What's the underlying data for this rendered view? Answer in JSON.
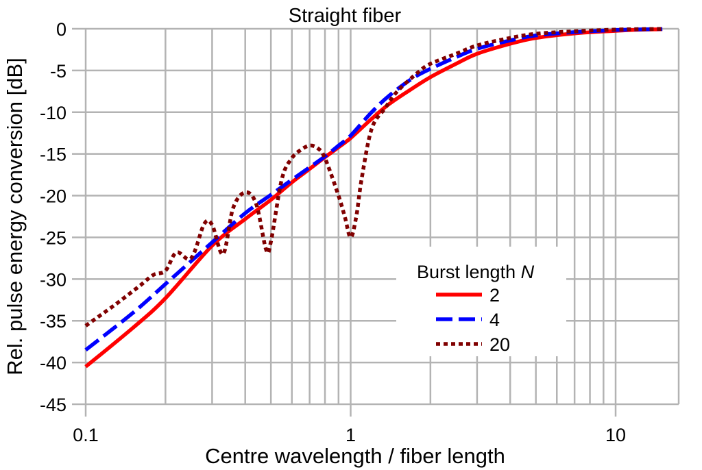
{
  "chart_data": {
    "type": "line",
    "title": "Straight fiber",
    "xlabel": "Centre wavelength / fiber length",
    "ylabel": "Rel. pulse energy conversion [dB]",
    "xscale": "log",
    "xlim": [
      0.1,
      15
    ],
    "ylim": [
      -45,
      0
    ],
    "grid": true,
    "xticks": [
      {
        "value": 0.1,
        "label": "0.1"
      },
      {
        "value": 1,
        "label": "1"
      },
      {
        "value": 10,
        "label": "10"
      }
    ],
    "yticks": [
      {
        "value": 0,
        "label": "0"
      },
      {
        "value": -5,
        "label": "-5"
      },
      {
        "value": -10,
        "label": "-10"
      },
      {
        "value": -15,
        "label": "-15"
      },
      {
        "value": -20,
        "label": "-20"
      },
      {
        "value": -25,
        "label": "-25"
      },
      {
        "value": -30,
        "label": "-30"
      },
      {
        "value": -35,
        "label": "-35"
      },
      {
        "value": -40,
        "label": "-40"
      },
      {
        "value": -45,
        "label": "-45"
      }
    ],
    "legend": {
      "title": "Burst length",
      "title_var": "N",
      "placement": "lower-right"
    },
    "series": [
      {
        "name": "2",
        "color": "#ff0000",
        "style": "solid",
        "x": [
          0.1,
          0.15,
          0.2,
          0.3,
          0.4,
          0.5,
          0.6,
          0.7,
          0.8,
          0.9,
          1.0,
          1.2,
          1.4,
          1.7,
          2.0,
          2.5,
          3.0,
          4.0,
          5.0,
          7.0,
          10.0,
          12.0,
          15.0
        ],
        "y": [
          -40.5,
          -35.9,
          -32.3,
          -26.0,
          -22.8,
          -20.5,
          -18.4,
          -16.8,
          -15.4,
          -14.2,
          -13.1,
          -10.8,
          -9.0,
          -7.2,
          -5.8,
          -4.2,
          -3.0,
          -1.8,
          -1.1,
          -0.55,
          -0.25,
          -0.12,
          -0.05
        ]
      },
      {
        "name": "4",
        "color": "#0000ff",
        "style": "dashed",
        "x": [
          0.1,
          0.15,
          0.2,
          0.3,
          0.4,
          0.5,
          0.6,
          0.7,
          0.8,
          0.9,
          1.0,
          1.2,
          1.4,
          1.7,
          2.0,
          2.5,
          3.0,
          4.0,
          5.0,
          7.0,
          10.0,
          12.0,
          15.0
        ],
        "y": [
          -38.5,
          -34.1,
          -30.6,
          -25.6,
          -22.1,
          -19.9,
          -18.1,
          -16.6,
          -15.3,
          -14.0,
          -12.8,
          -10.0,
          -8.0,
          -6.0,
          -4.8,
          -3.4,
          -2.4,
          -1.4,
          -0.8,
          -0.4,
          -0.15,
          -0.08,
          -0.03
        ]
      },
      {
        "name": "20",
        "color": "#800000",
        "style": "dotted",
        "x": [
          0.1,
          0.13,
          0.16,
          0.18,
          0.2,
          0.22,
          0.25,
          0.28,
          0.3,
          0.33,
          0.36,
          0.4,
          0.44,
          0.48,
          0.5,
          0.55,
          0.6,
          0.65,
          0.7,
          0.75,
          0.8,
          0.9,
          0.95,
          1.0,
          1.05,
          1.1,
          1.2,
          1.35,
          1.5,
          1.8,
          2.0,
          2.5,
          3.0,
          4.0,
          5.0,
          7.0,
          10.0,
          12.0,
          15.0
        ],
        "y": [
          -35.6,
          -33.0,
          -30.8,
          -29.5,
          -29.0,
          -26.8,
          -27.5,
          -23.4,
          -23.5,
          -27.0,
          -21.5,
          -19.6,
          -21.0,
          -26.5,
          -25.5,
          -18.0,
          -15.5,
          -14.5,
          -14.0,
          -14.3,
          -15.5,
          -20.0,
          -22.5,
          -25.0,
          -22.5,
          -18.0,
          -12.0,
          -9.5,
          -7.5,
          -5.2,
          -4.2,
          -3.0,
          -2.0,
          -1.1,
          -0.6,
          -0.3,
          -0.1,
          -0.05,
          -0.02
        ]
      }
    ]
  }
}
